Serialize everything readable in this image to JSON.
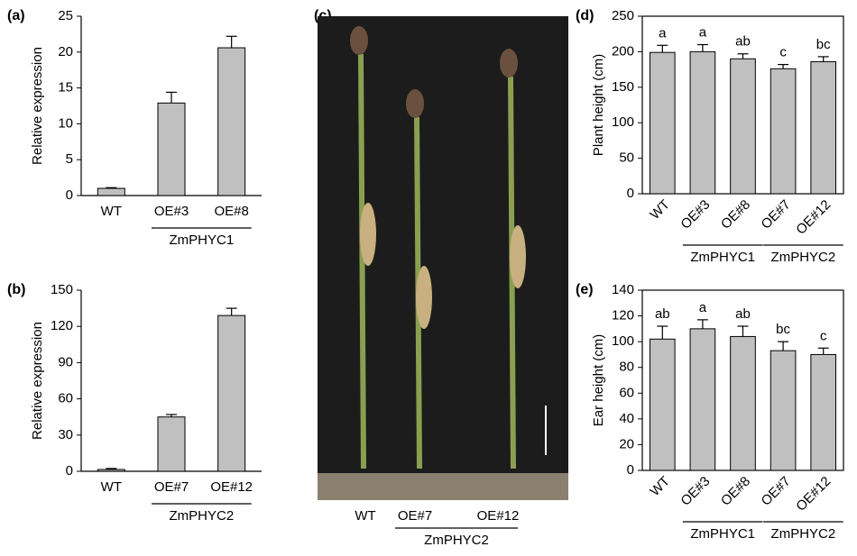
{
  "chart_data": [
    {
      "type": "bar",
      "panel": "(a)",
      "ylabel": "Relative expression",
      "categories": [
        "WT",
        "OE#3",
        "OE#8"
      ],
      "values": [
        1,
        12.9,
        20.6
      ],
      "errors": [
        0.1,
        1.5,
        1.6
      ],
      "color": "#c0c0c0",
      "ylim": [
        0,
        25
      ],
      "yticks": [
        0,
        5,
        10,
        15,
        20,
        25
      ],
      "groups": [
        {
          "name": "ZmPHYC1",
          "members": [
            "OE#3",
            "OE#8"
          ]
        }
      ]
    },
    {
      "type": "bar",
      "panel": "(b)",
      "ylabel": "Relative expression",
      "categories": [
        "WT",
        "OE#7",
        "OE#12"
      ],
      "values": [
        1.5,
        45,
        129
      ],
      "errors": [
        0.8,
        2,
        6
      ],
      "color": "#c0c0c0",
      "ylim": [
        0,
        150
      ],
      "yticks": [
        0,
        30,
        60,
        90,
        120,
        150
      ],
      "groups": [
        {
          "name": "ZmPHYC2",
          "members": [
            "OE#7",
            "OE#12"
          ]
        }
      ]
    },
    {
      "type": "image",
      "panel": "(c)",
      "categories": [
        "WT",
        "OE#7",
        "OE#12"
      ],
      "groups": [
        {
          "name": "ZmPHYC2",
          "members": [
            "OE#7",
            "OE#12"
          ]
        }
      ]
    },
    {
      "type": "bar",
      "panel": "(d)",
      "ylabel": "Plant height (cm)",
      "box": true,
      "rotate_labels": true,
      "categories": [
        "WT",
        "OE#3",
        "OE#8",
        "OE#7",
        "OE#12"
      ],
      "values": [
        199,
        200,
        190,
        176,
        186
      ],
      "errors": [
        10,
        10,
        7,
        6,
        7
      ],
      "letters": [
        "a",
        "a",
        "ab",
        "c",
        "bc"
      ],
      "color": "#c0c0c0",
      "ylim": [
        0,
        250
      ],
      "yticks": [
        0,
        50,
        100,
        150,
        200,
        250
      ],
      "groups": [
        {
          "name": "ZmPHYC1",
          "members": [
            "OE#3",
            "OE#8"
          ]
        },
        {
          "name": "ZmPHYC2",
          "members": [
            "OE#7",
            "OE#12"
          ]
        }
      ]
    },
    {
      "type": "bar",
      "panel": "(e)",
      "ylabel": "Ear height (cm)",
      "box": true,
      "rotate_labels": true,
      "categories": [
        "WT",
        "OE#3",
        "OE#8",
        "OE#7",
        "OE#12"
      ],
      "values": [
        102,
        110,
        104,
        93,
        90
      ],
      "errors": [
        10,
        7,
        8,
        7,
        5
      ],
      "letters": [
        "ab",
        "a",
        "ab",
        "bc",
        "c"
      ],
      "color": "#c0c0c0",
      "ylim": [
        0,
        140
      ],
      "yticks": [
        0,
        20,
        40,
        60,
        80,
        100,
        120,
        140
      ],
      "groups": [
        {
          "name": "ZmPHYC1",
          "members": [
            "OE#3",
            "OE#8"
          ]
        },
        {
          "name": "ZmPHYC2",
          "members": [
            "OE#7",
            "OE#12"
          ]
        }
      ]
    }
  ]
}
